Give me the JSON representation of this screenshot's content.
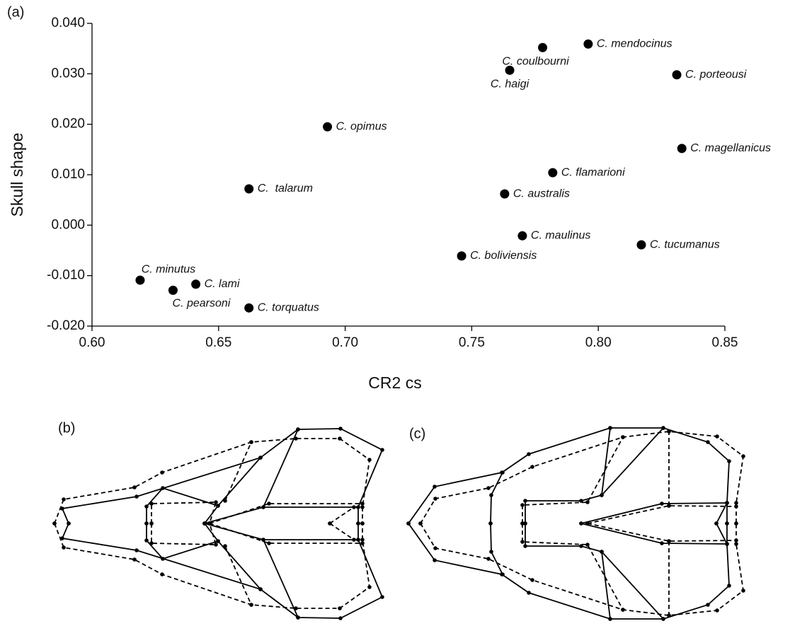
{
  "chart_data": {
    "type": "scatter",
    "panel_label": "(a)",
    "x_label": "CR2 cs",
    "y_label": "Skull shape",
    "xlim": [
      0.6,
      0.85
    ],
    "ylim": [
      -0.02,
      0.04
    ],
    "xticks": [
      {
        "value": 0.6,
        "label": "0.60"
      },
      0.65,
      {
        "value": 0.7,
        "label": "0.70"
      },
      0.75,
      {
        "value": 0.8,
        "label": "0.80"
      },
      0.85
    ],
    "yticks": [
      {
        "value": -0.02,
        "label": "-0.020"
      },
      {
        "value": -0.01,
        "label": "-0.010"
      },
      {
        "value": 0,
        "label": "0.000"
      },
      {
        "value": 0.01,
        "label": "0.010"
      },
      {
        "value": 0.02,
        "label": "0.020"
      },
      {
        "value": 0.03,
        "label": "0.030"
      },
      {
        "value": 0.04,
        "label": "0.040"
      }
    ],
    "color": "#000000",
    "labels": [
      "C. mendocinus",
      "C. coulbourni",
      "C. haigi",
      "C. porteousi",
      "C. opimus",
      "C. magellanicus",
      "C. flamarioni",
      "C.  talarum",
      "C. australis",
      "C. maulinus",
      "C. tucumanus",
      "C. boliviensis",
      "C. minutus",
      "C. lami",
      "C. pearsoni",
      "C. torquatus"
    ],
    "x": [
      0.796,
      0.778,
      0.765,
      0.831,
      0.693,
      0.833,
      0.782,
      0.662,
      0.763,
      0.77,
      0.817,
      0.746,
      0.619,
      0.641,
      0.632,
      0.662
    ],
    "values": [
      0.0359,
      0.0352,
      0.0307,
      0.0298,
      0.0195,
      0.0152,
      0.0104,
      0.0072,
      0.0062,
      -0.0021,
      -0.0039,
      -0.0061,
      -0.0109,
      -0.0117,
      -0.0129,
      -0.0164
    ]
  },
  "diagrams": [
    {
      "label": "(b)"
    },
    {
      "label": "(c)"
    }
  ]
}
